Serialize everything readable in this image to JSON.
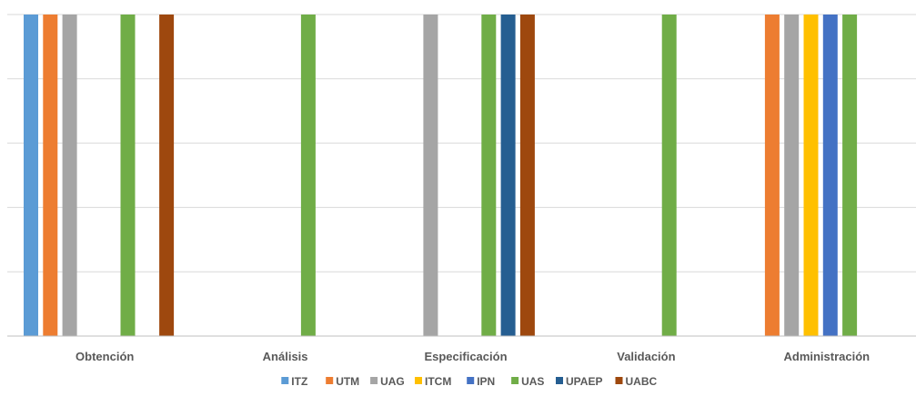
{
  "chart_data": {
    "type": "bar",
    "title": "",
    "xlabel": "",
    "ylabel": "",
    "categories": [
      "Obtención",
      "Análisis",
      "Especificación",
      "Validación",
      "Administración"
    ],
    "ylim": [
      0,
      1
    ],
    "grid": true,
    "legend_position": "bottom",
    "series": [
      {
        "name": "ITZ",
        "color": "#5B9BD5",
        "values": [
          1,
          0,
          0,
          0,
          0
        ]
      },
      {
        "name": "UTM",
        "color": "#ED7D31",
        "values": [
          1,
          0,
          0,
          0,
          1
        ]
      },
      {
        "name": "UAG",
        "color": "#A5A5A5",
        "values": [
          1,
          0,
          1,
          0,
          1
        ]
      },
      {
        "name": "ITCM",
        "color": "#FFC000",
        "values": [
          0,
          0,
          0,
          0,
          1
        ]
      },
      {
        "name": "IPN",
        "color": "#4472C4",
        "values": [
          0,
          0,
          0,
          0,
          1
        ]
      },
      {
        "name": "UAS",
        "color": "#70AD47",
        "values": [
          1,
          1,
          1,
          1,
          1
        ]
      },
      {
        "name": "UPAEP",
        "color": "#255E91",
        "values": [
          0,
          0,
          1,
          0,
          0
        ]
      },
      {
        "name": "UABC",
        "color": "#9E480E",
        "values": [
          1,
          0,
          1,
          0,
          0
        ]
      }
    ]
  }
}
